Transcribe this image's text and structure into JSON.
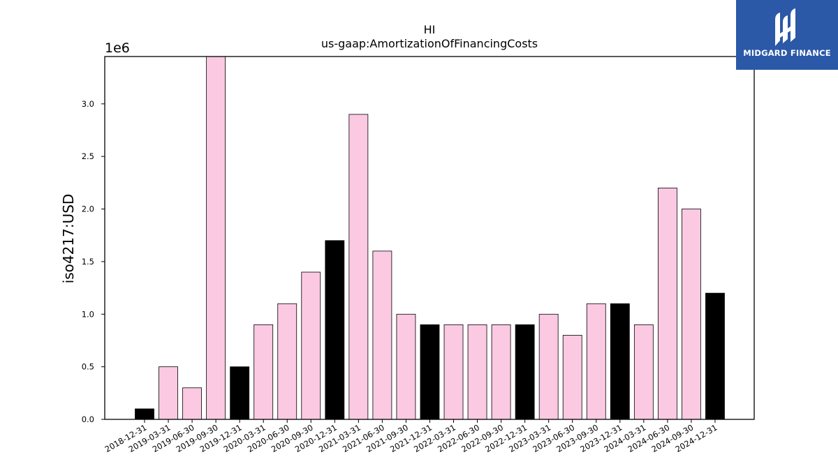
{
  "chart_data": {
    "type": "bar",
    "title": "HI",
    "subtitle": "us-gaap:AmortizationOfFinancingCosts",
    "xlabel": "",
    "ylabel": "iso4217:USD",
    "y_offset_label": "1e6",
    "ylim": [
      0,
      3.45
    ],
    "y_ticks": [
      "0.0",
      "0.5",
      "1.0",
      "1.5",
      "2.0",
      "2.5",
      "3.0"
    ],
    "grid": false,
    "colors": {
      "annual": "#000000",
      "quarterly": "#fbc9e2"
    },
    "categories": [
      "2018-12-31",
      "2019-03-31",
      "2019-06-30",
      "2019-09-30",
      "2019-12-31",
      "2020-03-31",
      "2020-06-30",
      "2020-09-30",
      "2020-12-31",
      "2021-03-31",
      "2021-06-30",
      "2021-09-30",
      "2021-12-31",
      "2022-03-31",
      "2022-06-30",
      "2022-09-30",
      "2022-12-31",
      "2023-03-31",
      "2023-06-30",
      "2023-09-30",
      "2023-12-31",
      "2024-03-31",
      "2024-06-30",
      "2024-09-30",
      "2024-12-31"
    ],
    "values": [
      0.1,
      0.5,
      0.3,
      3.5,
      0.5,
      0.9,
      1.1,
      1.4,
      1.7,
      2.9,
      1.6,
      1.0,
      0.9,
      0.9,
      0.9,
      0.9,
      0.9,
      1.0,
      0.8,
      1.1,
      1.1,
      0.9,
      2.2,
      2.0,
      1.2
    ],
    "bar_color_keys": [
      "annual",
      "quarterly",
      "quarterly",
      "quarterly",
      "annual",
      "quarterly",
      "quarterly",
      "quarterly",
      "annual",
      "quarterly",
      "quarterly",
      "quarterly",
      "annual",
      "quarterly",
      "quarterly",
      "quarterly",
      "annual",
      "quarterly",
      "quarterly",
      "quarterly",
      "annual",
      "quarterly",
      "quarterly",
      "quarterly",
      "annual"
    ]
  },
  "logo": {
    "text": "MIDGARD FINANCE",
    "color": "#2b59a8"
  }
}
